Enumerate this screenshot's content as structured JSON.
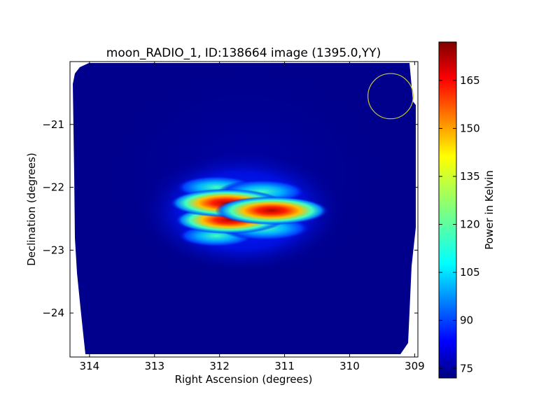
{
  "chart_data": {
    "type": "heatmap",
    "title": "moon_RADIO_1, ID:138664 image (1395.0,YY)",
    "xlabel": "Right Ascension (degrees)",
    "ylabel": "Declination (degrees)",
    "xlim": [
      314.3,
      308.95
    ],
    "ylim": [
      -24.7,
      -20.0
    ],
    "x_ticks": [
      314,
      313,
      312,
      311,
      310,
      309
    ],
    "y_ticks": [
      -21,
      -22,
      -23,
      -24
    ],
    "colorbar": {
      "label": "Power in Kelvin",
      "ticks": [
        75,
        90,
        105,
        120,
        135,
        150,
        165
      ],
      "range": [
        72,
        177
      ],
      "colormap": "jet"
    },
    "background_level": 75,
    "sources": [
      {
        "ra": 311.9,
        "dec": -22.25,
        "value": 172
      },
      {
        "ra": 311.2,
        "dec": -22.37,
        "value": 174
      },
      {
        "ra": 311.85,
        "dec": -22.52,
        "value": 165
      },
      {
        "ra": 311.35,
        "dec": -22.07,
        "value": 122
      },
      {
        "ra": 312.05,
        "dec": -22.0,
        "value": 108
      },
      {
        "ra": 311.55,
        "dec": -22.38,
        "value": 140
      },
      {
        "ra": 311.3,
        "dec": -22.65,
        "value": 128
      },
      {
        "ra": 312.05,
        "dec": -22.77,
        "value": 100
      }
    ],
    "beam_circle": {
      "ra": 309.37,
      "dec": -20.55,
      "radius_deg": 0.36,
      "color": "#c8c832"
    }
  }
}
